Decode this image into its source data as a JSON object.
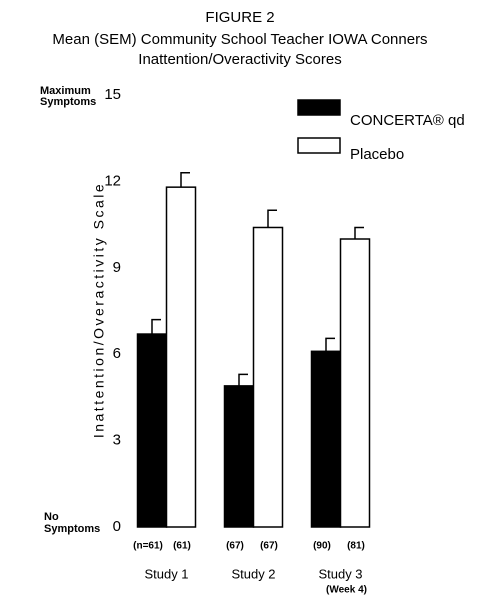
{
  "chart_data": {
    "type": "bar",
    "title": "FIGURE 2",
    "subtitle": [
      "Mean (SEM) Community School Teacher IOWA Conners",
      "Inattention/Overactivity Scores"
    ],
    "y_label": "Inattention/Overactivity Scale",
    "y_top_label": [
      "Maximum",
      "Symptoms"
    ],
    "y_bottom_label": [
      "No",
      "Symptoms"
    ],
    "categories": [
      "Study 1",
      "Study 2",
      "Study 3"
    ],
    "category_notes": [
      null,
      null,
      "(Week 4)"
    ],
    "ylim": [
      0,
      15
    ],
    "yticks": [
      0,
      3,
      6,
      9,
      12,
      15
    ],
    "grid": false,
    "legend": "top-right",
    "series": [
      {
        "name": "CONCERTA® qd",
        "color": "#000000",
        "values": [
          6.7,
          4.9,
          6.1
        ],
        "errors": [
          0.5,
          0.4,
          0.45
        ],
        "n_labels": [
          "(n=61)",
          "(67)",
          "(90)"
        ]
      },
      {
        "name": "Placebo",
        "color": "#ffffff",
        "values": [
          11.8,
          10.4,
          10.0
        ],
        "errors": [
          0.5,
          0.6,
          0.4
        ],
        "n_labels": [
          "(61)",
          "(67)",
          "(81)"
        ]
      }
    ]
  }
}
